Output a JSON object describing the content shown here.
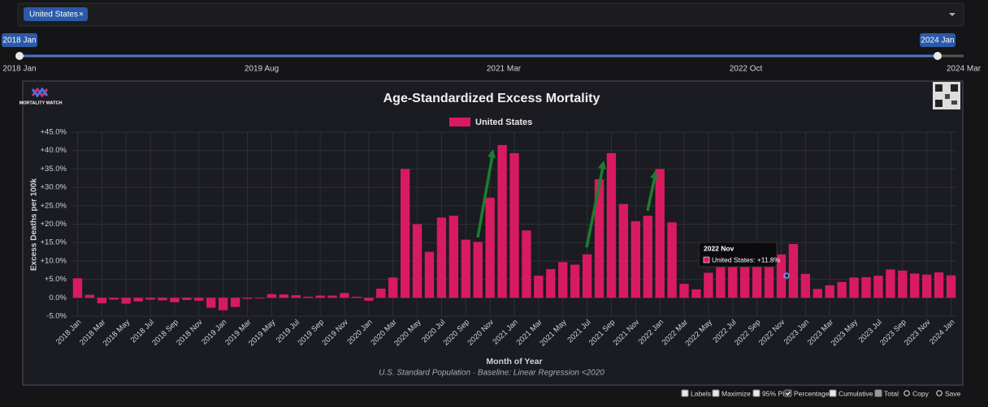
{
  "ui": {
    "jurisdiction_chip": "United States",
    "chip_close": "×",
    "slider": {
      "start": "2018 Jan",
      "end": "2024 Jan",
      "ticks": [
        "2018 Jan",
        "2019 Aug",
        "2021 Mar",
        "2022 Oct",
        "2024 Mar"
      ]
    },
    "logo": "MORTALITY WATCH",
    "toolbar": [
      "Labels",
      "Maximize",
      "95% PI",
      "Percentage",
      "Cumulative",
      "Total",
      "Copy",
      "Save"
    ],
    "tooltip": {
      "title": "2022 Nov",
      "text": "United States: +11.8%"
    }
  },
  "chart_data": {
    "type": "bar",
    "title": "Age-Standardized Excess Mortality",
    "subtitle": "U.S. Standard Population · Baseline: Linear Regression <2020",
    "x_label": "Month of Year",
    "y_label": "Excess Deaths per 100k",
    "categories": [
      "2018 Jan",
      null,
      "2018 Mar",
      null,
      "2018 May",
      null,
      "2018 Jul",
      null,
      "2018 Sep",
      null,
      "2018 Nov",
      null,
      "2019 Jan",
      null,
      "2019 Mar",
      null,
      "2019 May",
      null,
      "2019 Jul",
      null,
      "2019 Sep",
      null,
      "2019 Nov",
      null,
      "2020 Jan",
      null,
      "2020 Mar",
      null,
      "2020 May",
      null,
      "2020 Jul",
      null,
      "2020 Sep",
      null,
      "2020 Nov",
      null,
      "2021 Jan",
      null,
      "2021 Mar",
      null,
      "2021 May",
      null,
      "2021 Jul",
      null,
      "2021 Sep",
      null,
      "2021 Nov",
      null,
      "2022 Jan",
      null,
      "2022 Mar",
      null,
      "2022 May",
      null,
      "2022 Jul",
      null,
      "2022 Sep",
      null,
      "2022 Nov",
      null,
      "2023 Jan",
      null,
      "2023 Mar",
      null,
      "2023 May",
      null,
      "2023 Jul",
      null,
      "2023 Sep",
      null,
      "2023 Nov",
      null,
      "2024 Jan"
    ],
    "series": [
      {
        "name": "United States",
        "color": "#d81b60",
        "values": [
          5.3,
          0.8,
          -1.5,
          -0.5,
          -1.6,
          -1.0,
          -0.5,
          -0.7,
          -1.2,
          -0.6,
          -0.8,
          -2.7,
          -3.4,
          -2.5,
          -0.3,
          -0.2,
          1.0,
          0.9,
          0.7,
          0.3,
          0.6,
          0.6,
          1.3,
          0.3,
          -0.8,
          2.5,
          5.5,
          35.0,
          20.0,
          12.5,
          21.8,
          22.3,
          15.8,
          15.2,
          27.2,
          41.5,
          39.3,
          18.3,
          6.0,
          7.8,
          9.7,
          9.0,
          11.8,
          32.2,
          39.3,
          25.5,
          20.8,
          22.3,
          35.0,
          20.5,
          3.8,
          2.3,
          6.8,
          8.3,
          8.5,
          8.5,
          8.4,
          8.6,
          11.8,
          14.6,
          6.5,
          2.4,
          3.4,
          4.3,
          5.5,
          5.6,
          6.0,
          7.7,
          7.4,
          6.6,
          6.3,
          6.9,
          6.1
        ]
      }
    ],
    "ylim": [
      -5,
      45
    ],
    "yticks": [
      {
        "value": -5,
        "label": "-5.0%"
      },
      {
        "value": 0,
        "label": "0.0%"
      },
      {
        "value": 5,
        "label": "+5.0%"
      },
      {
        "value": 10,
        "label": "+10.0%"
      },
      {
        "value": 15,
        "label": "+15.0%"
      },
      {
        "value": 20,
        "label": "+20.0%"
      },
      {
        "value": 25,
        "label": "+25.0%"
      },
      {
        "value": 30,
        "label": "+30.0%"
      },
      {
        "value": 35,
        "label": "+35.0%"
      },
      {
        "value": 40,
        "label": "+40.0%"
      },
      {
        "value": 45,
        "label": "+45.0%"
      }
    ],
    "grid": true
  }
}
